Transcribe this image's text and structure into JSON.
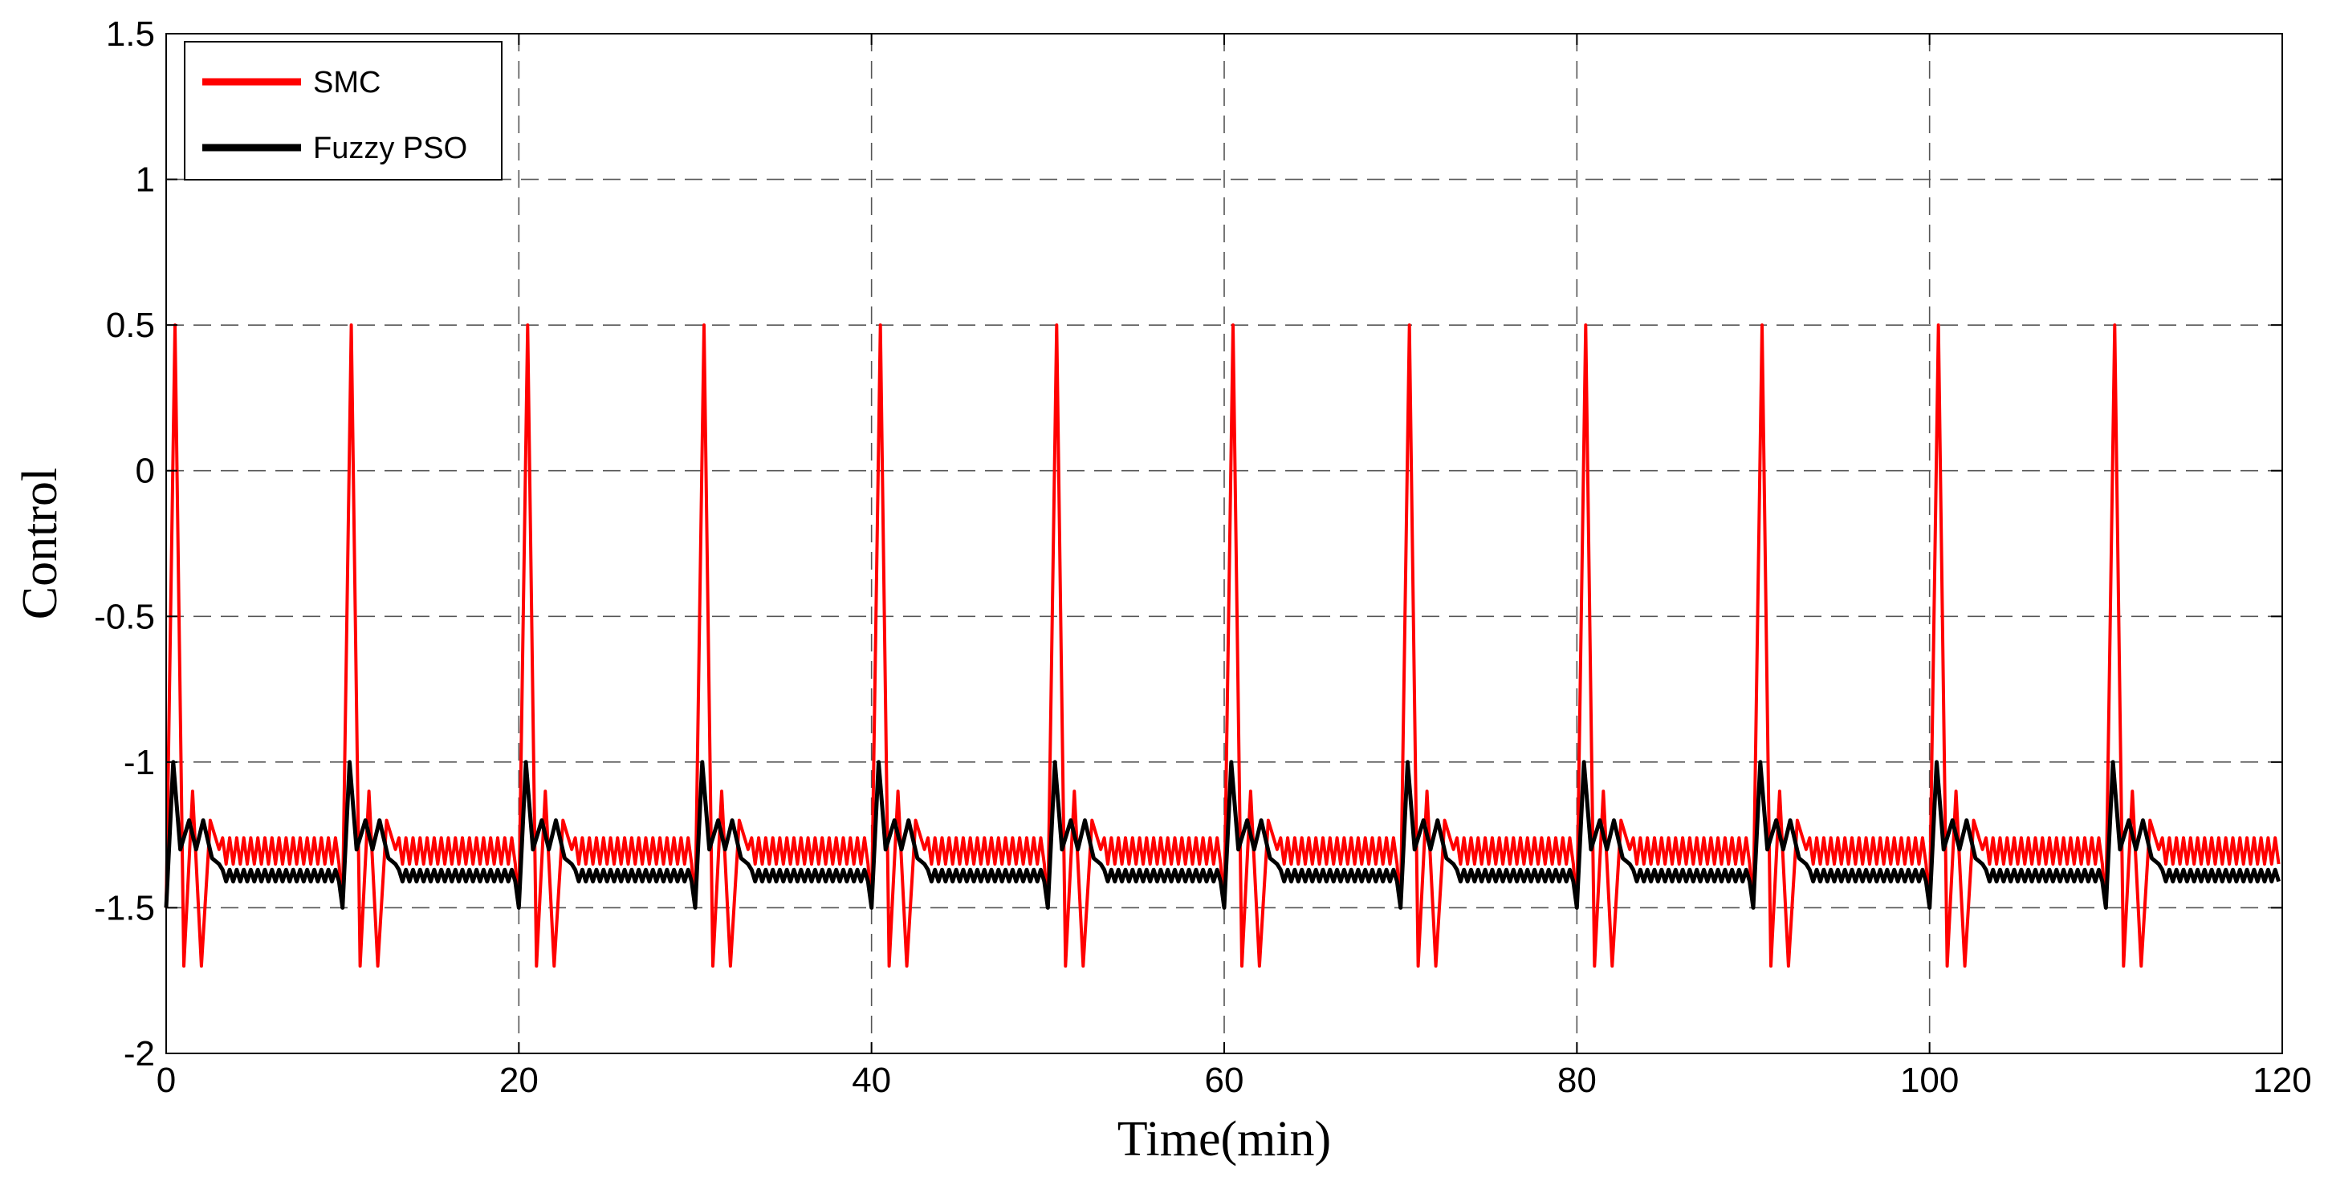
{
  "chart_data": {
    "type": "line",
    "xlabel": "Time(min)",
    "ylabel": "Control",
    "xlim": [
      0,
      120
    ],
    "ylim": [
      -2,
      1.5
    ],
    "xticks": [
      0,
      20,
      40,
      60,
      80,
      100,
      120
    ],
    "xtick_labels": [
      "0",
      "20",
      "40",
      "60",
      "80",
      "100",
      "120"
    ],
    "yticks": [
      -2,
      -1.5,
      -1,
      -0.5,
      0,
      0.5,
      1,
      1.5
    ],
    "ytick_labels": [
      "-2",
      "-1.5",
      "-1",
      "-0.5",
      "0",
      "0.5",
      "1",
      "1.5"
    ],
    "grid": true,
    "grid_style": "dashed",
    "legend_position": "top-left",
    "series": [
      {
        "name": "SMC",
        "color": "#ff0000",
        "period_min": 10,
        "start_min": 0,
        "transient_x": [
          0,
          0.5,
          1.0,
          1.5,
          2.0,
          2.5,
          3.0
        ],
        "transient_y": [
          -1.5,
          0.5,
          -1.7,
          -1.1,
          -1.7,
          -1.2,
          -1.3
        ],
        "steady_band": [
          -1.35,
          -1.26
        ],
        "oscillation_step_min": 0.2
      },
      {
        "name": "Fuzzy PSO",
        "color": "#000000",
        "period_min": 10,
        "start_min": 0,
        "transient_x": [
          0,
          0.4,
          0.8,
          1.3,
          1.7,
          2.1,
          2.6,
          3.0
        ],
        "transient_y": [
          -1.5,
          -1.0,
          -1.3,
          -1.2,
          -1.3,
          -1.2,
          -1.33,
          -1.35
        ],
        "steady_band": [
          -1.41,
          -1.37
        ],
        "oscillation_step_min": 0.2
      }
    ]
  }
}
